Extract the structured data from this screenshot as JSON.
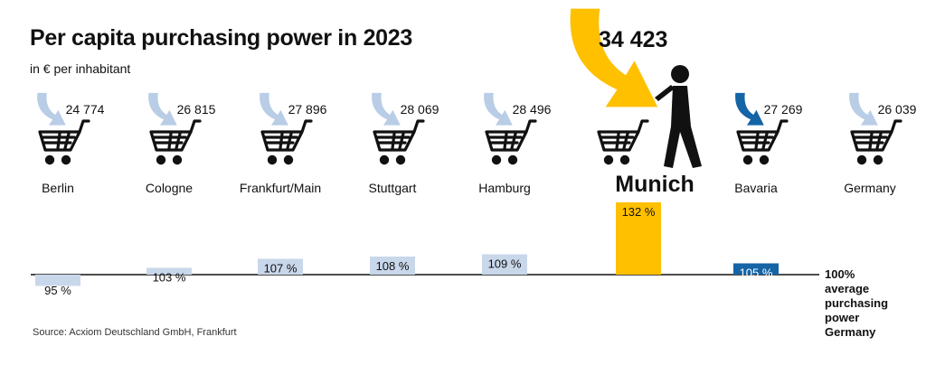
{
  "title": "Per capita purchasing power in 2023",
  "subtitle": "in € per inhabitant",
  "source": "Source: Acxiom Deutschland GmbH, Frankfurt",
  "baseline_label": "100%\naverage\npurchasing\npower\nGermany",
  "colors": {
    "default_bar": "#c9d7ea",
    "munich": "#ffc000",
    "bavaria": "#1464a6",
    "arrow_default": "#b9cde6",
    "arrow_bavaria": "#1464a6",
    "arrow_munich": "#ffc000",
    "cart": "#111111"
  },
  "icons": {
    "cart": "shopping-cart-icon",
    "arrow": "curved-arrow-icon",
    "person": "walking-person-icon"
  },
  "chart_data": {
    "type": "bar",
    "baseline": 100,
    "categories": [
      "Berlin",
      "Cologne",
      "Frankfurt/Main",
      "Stuttgart",
      "Hamburg",
      "Munich",
      "Bavaria",
      "Germany"
    ],
    "values": [
      95,
      103,
      107,
      108,
      109,
      132,
      105,
      null
    ],
    "value_labels": [
      "95 %",
      "103 %",
      "107 %",
      "108 %",
      "109 %",
      "132 %",
      "105 %",
      ""
    ],
    "purchasing_power": [
      24774,
      26815,
      27896,
      28069,
      28496,
      34423,
      27269,
      26039
    ],
    "purchasing_power_labels": [
      "24 774",
      "26 815",
      "27 896",
      "28 069",
      "28 496",
      "34 423",
      "27 269",
      "26 039"
    ],
    "highlight": "Munich"
  }
}
